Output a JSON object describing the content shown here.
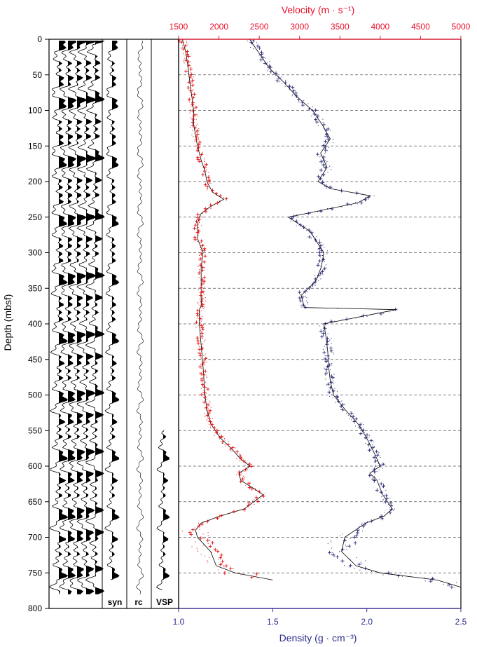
{
  "chart_data": {
    "type": "scatter",
    "title": "",
    "y_axis": {
      "label": "Depth (mbsf)",
      "range": [
        0,
        800
      ],
      "ticks": [
        0,
        50,
        100,
        150,
        200,
        250,
        300,
        350,
        400,
        450,
        500,
        550,
        600,
        650,
        700,
        750,
        800
      ],
      "inverted": true
    },
    "x_axis_top": {
      "label": "Velocity (m · s⁻¹)",
      "range": [
        1500,
        5000
      ],
      "ticks": [
        1500,
        2000,
        2500,
        3000,
        3500,
        4000,
        4500,
        5000
      ],
      "color": "#e8102b"
    },
    "x_axis_bottom": {
      "label": "Density (g · cm⁻³)",
      "range": [
        1.0,
        2.5
      ],
      "ticks": [
        "1.0",
        "1.5",
        "2.0",
        "2.5"
      ],
      "color": "#2c2c8c"
    },
    "grid": "dashed horizontal every 50 m",
    "panels": [
      "syn",
      "rc",
      "VSP"
    ],
    "series": [
      {
        "color": "#e00000",
        "axis": "bottom",
        "depth": [
          0,
          20,
          40,
          60,
          80,
          100,
          120,
          150,
          170,
          185,
          200,
          215,
          225,
          235,
          245,
          250,
          260,
          280,
          300,
          320,
          340,
          360,
          375,
          380,
          400,
          430,
          460,
          500,
          520,
          540,
          560,
          575,
          590,
          600,
          610,
          620,
          630,
          640,
          650,
          660,
          670,
          680,
          690,
          700,
          720,
          740,
          750,
          760
        ],
        "values": [
          1.02,
          1.04,
          1.05,
          1.06,
          1.07,
          1.08,
          1.08,
          1.1,
          1.12,
          1.14,
          1.15,
          1.18,
          1.24,
          1.17,
          1.12,
          1.11,
          1.1,
          1.1,
          1.13,
          1.12,
          1.12,
          1.12,
          1.12,
          1.11,
          1.11,
          1.12,
          1.13,
          1.14,
          1.15,
          1.17,
          1.22,
          1.28,
          1.33,
          1.38,
          1.32,
          1.33,
          1.39,
          1.45,
          1.4,
          1.35,
          1.22,
          1.12,
          1.09,
          1.1,
          1.17,
          1.2,
          1.3,
          1.5
        ]
      },
      {
        "color": "#1a1a6e",
        "axis": "top",
        "depth": [
          0,
          20,
          40,
          60,
          80,
          100,
          120,
          140,
          160,
          180,
          200,
          210,
          220,
          230,
          240,
          250,
          270,
          300,
          320,
          340,
          360,
          377,
          380,
          400,
          420,
          440,
          460,
          480,
          500,
          520,
          540,
          560,
          580,
          600,
          610,
          620,
          640,
          660,
          670,
          680,
          700,
          720,
          740,
          750,
          760,
          770
        ],
        "values": [
          2380,
          2500,
          2620,
          2800,
          2960,
          3160,
          3280,
          3380,
          3260,
          3340,
          3230,
          3380,
          3880,
          3720,
          3290,
          2860,
          3130,
          3300,
          3270,
          3200,
          3020,
          3060,
          4200,
          3300,
          3330,
          3350,
          3360,
          3380,
          3420,
          3560,
          3720,
          3830,
          3920,
          4000,
          3870,
          3960,
          4030,
          4150,
          4050,
          3820,
          3560,
          3520,
          3700,
          4000,
          4700,
          5000
        ]
      }
    ]
  }
}
